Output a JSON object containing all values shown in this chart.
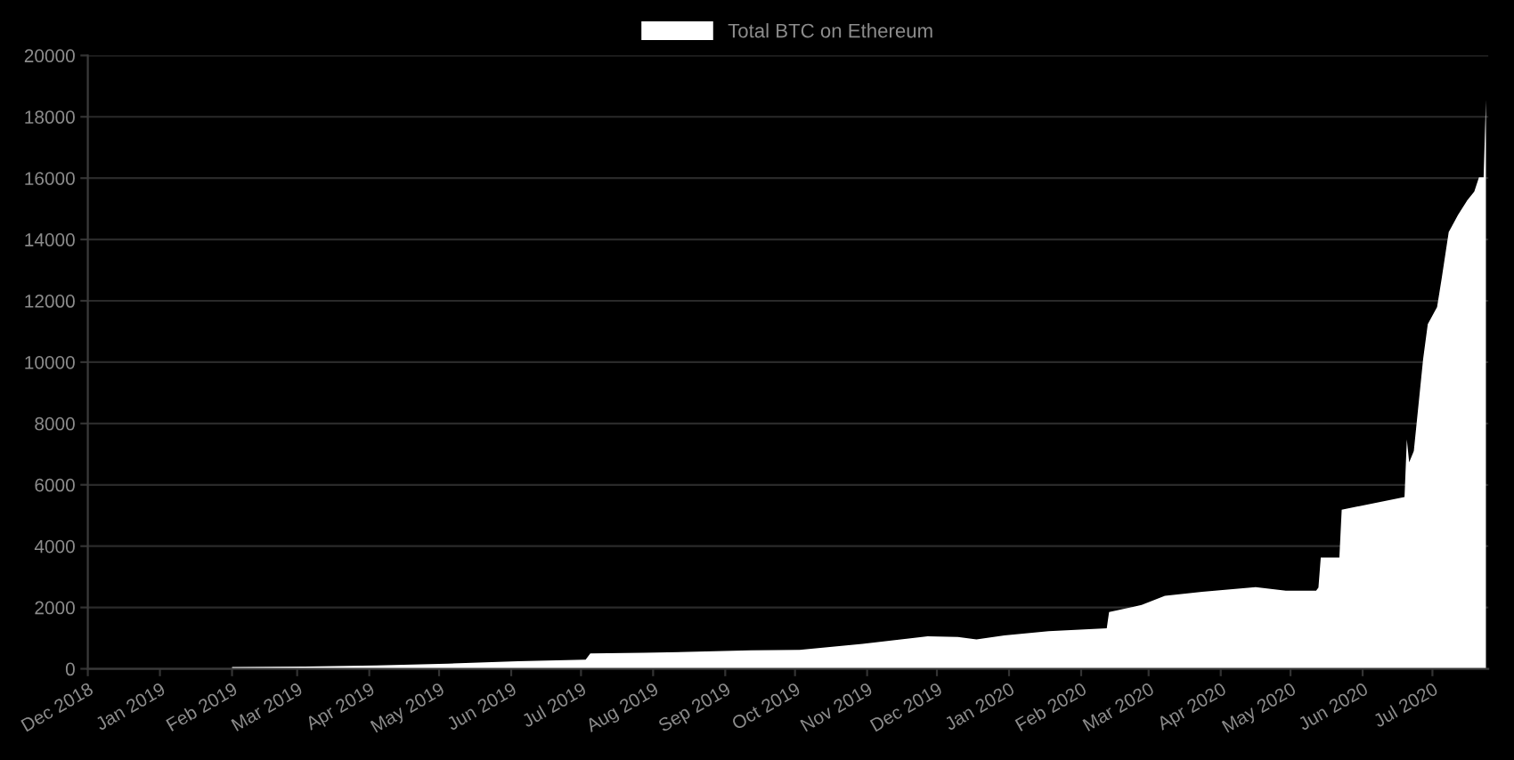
{
  "chart_data": {
    "type": "area",
    "legend": "top",
    "grid": "y",
    "x": [
      "2019-02-01",
      "2019-03-04",
      "2019-04-04",
      "2019-05-05",
      "2019-06-04",
      "2019-07-03",
      "2019-07-05",
      "2019-07-28",
      "2019-09-12",
      "2019-10-03",
      "2019-10-30",
      "2019-11-27",
      "2019-12-10",
      "2019-12-18",
      "2019-12-30",
      "2020-01-18",
      "2020-02-12",
      "2020-02-13",
      "2020-02-27",
      "2020-03-08",
      "2020-03-24",
      "2020-04-16",
      "2020-04-29",
      "2020-05-12",
      "2020-05-13",
      "2020-05-14",
      "2020-05-22",
      "2020-05-23",
      "2020-06-19",
      "2020-06-20",
      "2020-06-21",
      "2020-06-23",
      "2020-06-27",
      "2020-06-29",
      "2020-07-03",
      "2020-07-05",
      "2020-07-08",
      "2020-07-12",
      "2020-07-16",
      "2020-07-19",
      "2020-07-21",
      "2020-07-23",
      "2020-07-24"
    ],
    "series": [
      {
        "name": "Total BTC on Ethereum",
        "color": "#ffffff",
        "values": [
          60,
          70,
          110,
          170,
          250,
          300,
          500,
          520,
          600,
          620,
          810,
          1060,
          1040,
          960,
          1090,
          1230,
          1320,
          1850,
          2080,
          2380,
          2510,
          2660,
          2550,
          2550,
          2650,
          3630,
          3630,
          5190,
          5600,
          7480,
          6730,
          7100,
          10100,
          11240,
          11800,
          12740,
          14240,
          14800,
          15280,
          15560,
          16030,
          16030,
          18560
        ]
      }
    ],
    "xlim": [
      "2018-12-01",
      "2020-07-25"
    ],
    "xticks": [
      {
        "value": "2018-12-01",
        "label": "Dec 2018"
      },
      {
        "value": "2019-01-01",
        "label": "Jan 2019"
      },
      {
        "value": "2019-02-01",
        "label": "Feb 2019"
      },
      {
        "value": "2019-03-01",
        "label": "Mar 2019"
      },
      {
        "value": "2019-04-01",
        "label": "Apr 2019"
      },
      {
        "value": "2019-05-01",
        "label": "May 2019"
      },
      {
        "value": "2019-06-01",
        "label": "Jun 2019"
      },
      {
        "value": "2019-07-01",
        "label": "Jul 2019"
      },
      {
        "value": "2019-08-01",
        "label": "Aug 2019"
      },
      {
        "value": "2019-09-01",
        "label": "Sep 2019"
      },
      {
        "value": "2019-10-01",
        "label": "Oct 2019"
      },
      {
        "value": "2019-11-01",
        "label": "Nov 2019"
      },
      {
        "value": "2019-12-01",
        "label": "Dec 2019"
      },
      {
        "value": "2020-01-01",
        "label": "Jan 2020"
      },
      {
        "value": "2020-02-01",
        "label": "Feb 2020"
      },
      {
        "value": "2020-03-01",
        "label": "Mar 2020"
      },
      {
        "value": "2020-04-01",
        "label": "Apr 2020"
      },
      {
        "value": "2020-05-01",
        "label": "May 2020"
      },
      {
        "value": "2020-06-01",
        "label": "Jun 2020"
      },
      {
        "value": "2020-07-01",
        "label": "Jul 2020"
      }
    ],
    "ylim": [
      0,
      20000
    ],
    "yticks": [
      0,
      2000,
      4000,
      6000,
      8000,
      10000,
      12000,
      14000,
      16000,
      18000,
      20000
    ]
  }
}
